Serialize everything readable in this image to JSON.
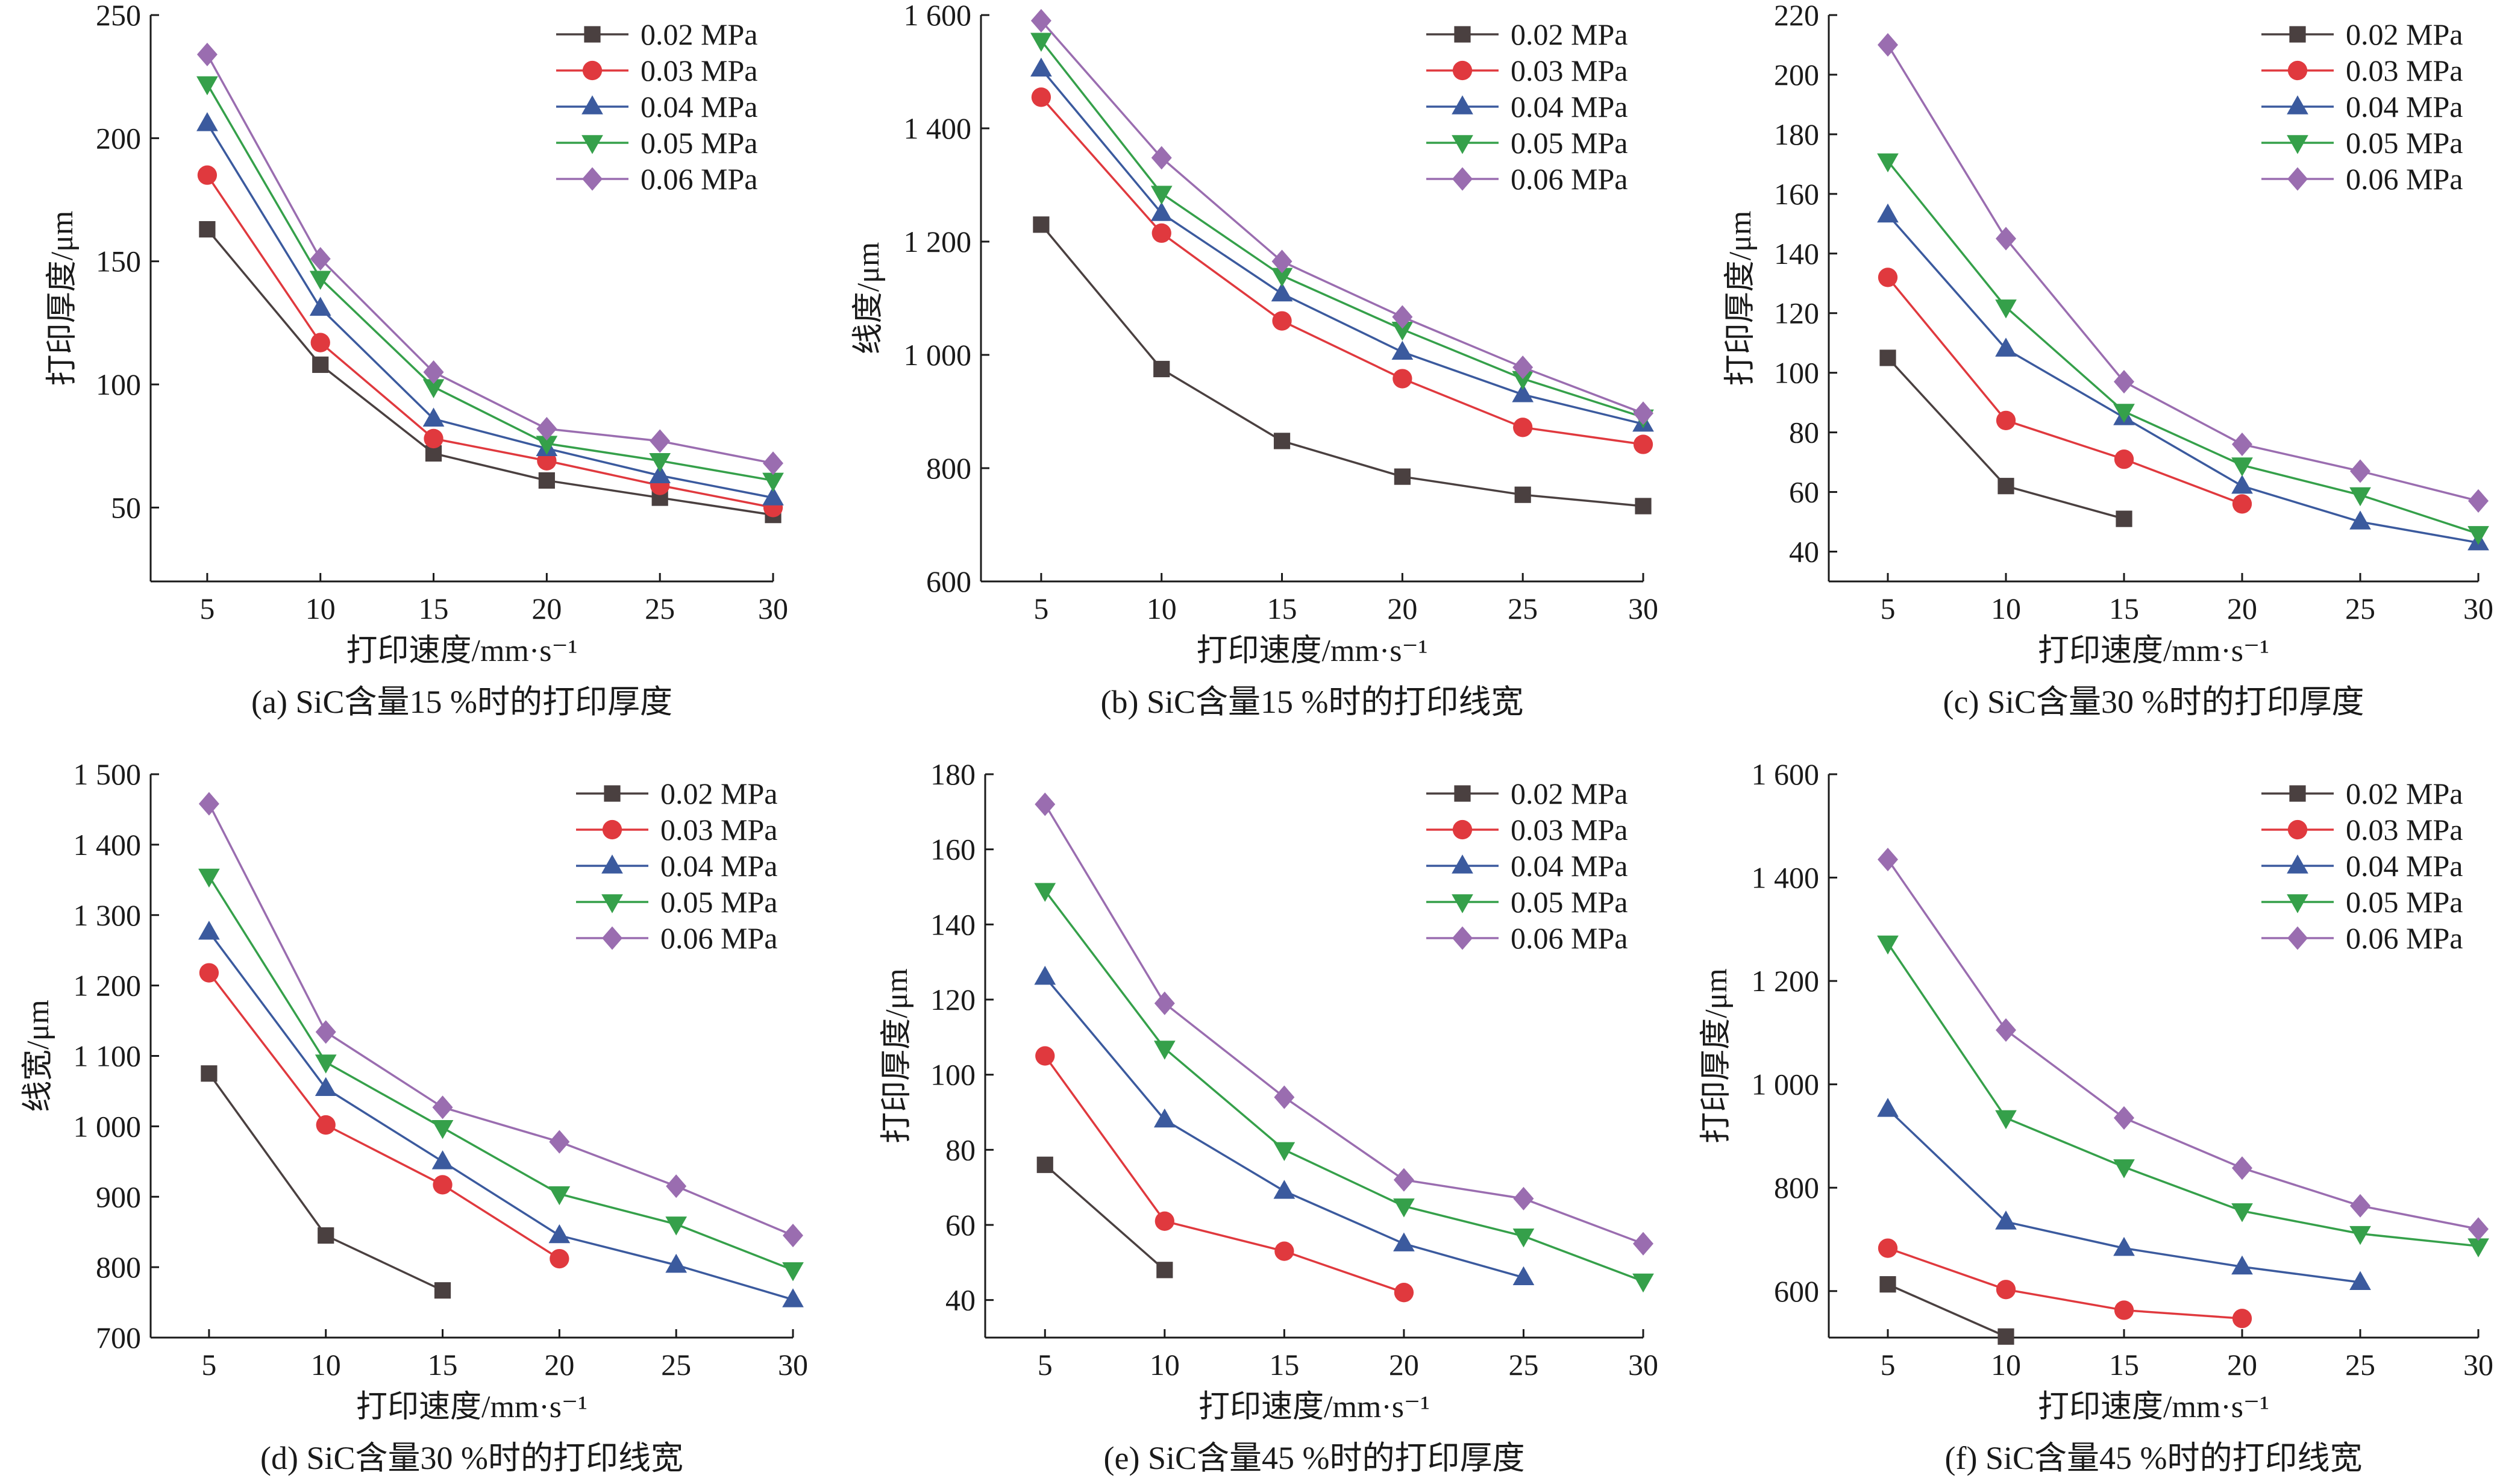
{
  "series_styles": [
    {
      "color": "#4a4040",
      "marker": "square"
    },
    {
      "color": "#e0393e",
      "marker": "circle"
    },
    {
      "color": "#3b5a9e",
      "marker": "triangle-up"
    },
    {
      "color": "#35a04a",
      "marker": "triangle-down"
    },
    {
      "color": "#9a6db0",
      "marker": "diamond"
    }
  ],
  "chart_data": [
    {
      "type": "line",
      "caption": "(a) SiC含量15 %时的打印厚度",
      "xlabel": "打印速度/mm·s⁻¹",
      "ylabel": "打印厚度/μm",
      "xlim": [
        2.5,
        30
      ],
      "ylim": [
        20,
        250
      ],
      "xticks": [
        5,
        10,
        15,
        20,
        25,
        30
      ],
      "yticks": [
        50,
        100,
        150,
        200,
        250
      ],
      "ytick_labels": [
        "50",
        "100",
        "150",
        "200",
        "250"
      ],
      "legend_position": "top-right",
      "series": [
        {
          "name": "0.02 MPa",
          "x": [
            5,
            10,
            15,
            20,
            25,
            30
          ],
          "values": [
            163,
            108,
            72,
            61,
            54,
            47
          ]
        },
        {
          "name": "0.03 MPa",
          "x": [
            5,
            10,
            15,
            20,
            25,
            30
          ],
          "values": [
            185,
            117,
            78,
            69,
            59,
            50
          ]
        },
        {
          "name": "0.04 MPa",
          "x": [
            5,
            10,
            15,
            20,
            25,
            30
          ],
          "values": [
            206,
            131,
            86,
            74,
            63,
            54
          ]
        },
        {
          "name": "0.05 MPa",
          "x": [
            5,
            10,
            15,
            20,
            25,
            30
          ],
          "values": [
            222,
            143,
            99,
            76,
            69,
            61
          ]
        },
        {
          "name": "0.06 MPa",
          "x": [
            5,
            10,
            15,
            20,
            25,
            30
          ],
          "values": [
            234,
            151,
            105,
            82,
            77,
            68
          ]
        }
      ]
    },
    {
      "type": "line",
      "caption": "(b) SiC含量15 %时的打印线宽",
      "xlabel": "打印速度/mm·s⁻¹",
      "ylabel": "线度/μm",
      "xlim": [
        2.5,
        30
      ],
      "ylim": [
        600,
        1600
      ],
      "xticks": [
        5,
        10,
        15,
        20,
        25,
        30
      ],
      "yticks": [
        600,
        800,
        1000,
        1200,
        1400,
        1600
      ],
      "ytick_labels": [
        "600",
        "800",
        "1 000",
        "1 200",
        "1 400",
        "1 600"
      ],
      "legend_position": "top-right",
      "series": [
        {
          "name": "0.02 MPa",
          "x": [
            5,
            10,
            15,
            20,
            25,
            30
          ],
          "values": [
            1230,
            975,
            848,
            785,
            753,
            733
          ]
        },
        {
          "name": "0.03 MPa",
          "x": [
            5,
            10,
            15,
            20,
            25,
            30
          ],
          "values": [
            1455,
            1215,
            1060,
            958,
            872,
            842
          ]
        },
        {
          "name": "0.04 MPa",
          "x": [
            5,
            10,
            15,
            20,
            25,
            30
          ],
          "values": [
            1505,
            1250,
            1108,
            1005,
            930,
            878
          ]
        },
        {
          "name": "0.05 MPa",
          "x": [
            5,
            10,
            15,
            20,
            25,
            30
          ],
          "values": [
            1555,
            1285,
            1140,
            1045,
            958,
            890
          ]
        },
        {
          "name": "0.06 MPa",
          "x": [
            5,
            10,
            15,
            20,
            25,
            30
          ],
          "values": [
            1590,
            1348,
            1165,
            1067,
            978,
            897
          ]
        }
      ]
    },
    {
      "type": "line",
      "caption": "(c) SiC含量30 %时的打印厚度",
      "xlabel": "打印速度/mm·s⁻¹",
      "ylabel": "打印厚度/μm",
      "xlim": [
        2.5,
        30
      ],
      "ylim": [
        30,
        220
      ],
      "xticks": [
        5,
        10,
        15,
        20,
        25,
        30
      ],
      "yticks": [
        40,
        60,
        80,
        100,
        120,
        140,
        160,
        180,
        200,
        220
      ],
      "ytick_labels": [
        "40",
        "60",
        "80",
        "100",
        "120",
        "140",
        "160",
        "180",
        "200",
        "220"
      ],
      "legend_position": "top-right",
      "series": [
        {
          "name": "0.02 MPa",
          "x": [
            5,
            10,
            15
          ],
          "values": [
            105,
            62,
            51
          ]
        },
        {
          "name": "0.03 MPa",
          "x": [
            5,
            10,
            15,
            20
          ],
          "values": [
            132,
            84,
            71,
            56
          ]
        },
        {
          "name": "0.04 MPa",
          "x": [
            5,
            10,
            15,
            20,
            25,
            30
          ],
          "values": [
            153,
            108,
            85,
            62,
            50,
            43
          ]
        },
        {
          "name": "0.05 MPa",
          "x": [
            5,
            10,
            15,
            20,
            25,
            30
          ],
          "values": [
            171,
            122,
            87,
            69,
            59,
            46
          ]
        },
        {
          "name": "0.06 MPa",
          "x": [
            5,
            10,
            15,
            20,
            25,
            30
          ],
          "values": [
            210,
            145,
            97,
            76,
            67,
            57
          ]
        }
      ]
    },
    {
      "type": "line",
      "caption": "(d) SiC含量30 %时的打印线宽",
      "xlabel": "打印速度/mm·s⁻¹",
      "ylabel": "线宽/μm",
      "xlim": [
        2.5,
        30
      ],
      "ylim": [
        700,
        1500
      ],
      "xticks": [
        5,
        10,
        15,
        20,
        25,
        30
      ],
      "yticks": [
        700,
        800,
        900,
        1000,
        1100,
        1200,
        1300,
        1400,
        1500
      ],
      "ytick_labels": [
        "700",
        "800",
        "900",
        "1 000",
        "1 100",
        "1 200",
        "1 300",
        "1 400",
        "1 500"
      ],
      "legend_position": "top-right",
      "series": [
        {
          "name": "0.02 MPa",
          "x": [
            5,
            10,
            15
          ],
          "values": [
            1075,
            845,
            767
          ]
        },
        {
          "name": "0.03 MPa",
          "x": [
            5,
            10,
            15,
            20
          ],
          "values": [
            1218,
            1002,
            917,
            812
          ]
        },
        {
          "name": "0.04 MPa",
          "x": [
            5,
            10,
            15,
            20,
            25,
            30
          ],
          "values": [
            1276,
            1054,
            950,
            845,
            803,
            754
          ]
        },
        {
          "name": "0.05 MPa",
          "x": [
            5,
            10,
            15,
            20,
            25,
            30
          ],
          "values": [
            1355,
            1091,
            998,
            904,
            861,
            796
          ]
        },
        {
          "name": "0.06 MPa",
          "x": [
            5,
            10,
            15,
            20,
            25,
            30
          ],
          "values": [
            1458,
            1134,
            1027,
            978,
            915,
            845
          ]
        }
      ]
    },
    {
      "type": "line",
      "caption": "(e) SiC含量45 %时的打印厚度",
      "xlabel": "打印速度/mm·s⁻¹",
      "ylabel": "打印厚度/μm",
      "xlim": [
        2.5,
        30
      ],
      "ylim": [
        30,
        180
      ],
      "xticks": [
        5,
        10,
        15,
        20,
        25,
        30
      ],
      "yticks": [
        40,
        60,
        80,
        100,
        120,
        140,
        160,
        180
      ],
      "ytick_labels": [
        "40",
        "60",
        "80",
        "100",
        "120",
        "140",
        "160",
        "180"
      ],
      "legend_position": "top-right",
      "series": [
        {
          "name": "0.02 MPa",
          "x": [
            5,
            10
          ],
          "values": [
            76,
            48
          ]
        },
        {
          "name": "0.03 MPa",
          "x": [
            5,
            10,
            15,
            20
          ],
          "values": [
            105,
            61,
            53,
            42
          ]
        },
        {
          "name": "0.04 MPa",
          "x": [
            5,
            10,
            15,
            20,
            25
          ],
          "values": [
            126,
            88,
            69,
            55,
            46
          ]
        },
        {
          "name": "0.05 MPa",
          "x": [
            5,
            10,
            15,
            20,
            25,
            30
          ],
          "values": [
            149,
            107,
            80,
            65,
            57,
            45
          ]
        },
        {
          "name": "0.06 MPa",
          "x": [
            5,
            10,
            15,
            20,
            25,
            30
          ],
          "values": [
            172,
            119,
            94,
            72,
            67,
            55
          ]
        }
      ]
    },
    {
      "type": "line",
      "caption": "(f) SiC含量45 %时的打印线宽",
      "xlabel": "打印速度/mm·s⁻¹",
      "ylabel": "打印厚度/μm",
      "xlim": [
        2.5,
        30
      ],
      "ylim": [
        510,
        1600
      ],
      "xticks": [
        5,
        10,
        15,
        20,
        25,
        30
      ],
      "yticks": [
        600,
        800,
        1000,
        1200,
        1400,
        1600
      ],
      "ytick_labels": [
        "600",
        "800",
        "1 000",
        "1 200",
        "1 400",
        "1 600"
      ],
      "legend_position": "top-right",
      "series": [
        {
          "name": "0.02 MPa",
          "x": [
            5,
            10
          ],
          "values": [
            613,
            512
          ]
        },
        {
          "name": "0.03 MPa",
          "x": [
            5,
            10,
            15,
            20
          ],
          "values": [
            683,
            603,
            563,
            547
          ]
        },
        {
          "name": "0.04 MPa",
          "x": [
            5,
            10,
            15,
            20,
            25
          ],
          "values": [
            952,
            734,
            683,
            647,
            617
          ]
        },
        {
          "name": "0.05 MPa",
          "x": [
            5,
            10,
            15,
            20,
            25,
            30
          ],
          "values": [
            1273,
            935,
            840,
            755,
            711,
            687
          ]
        },
        {
          "name": "0.06 MPa",
          "x": [
            5,
            10,
            15,
            20,
            25,
            30
          ],
          "values": [
            1435,
            1105,
            935,
            838,
            765,
            720
          ]
        }
      ]
    }
  ]
}
